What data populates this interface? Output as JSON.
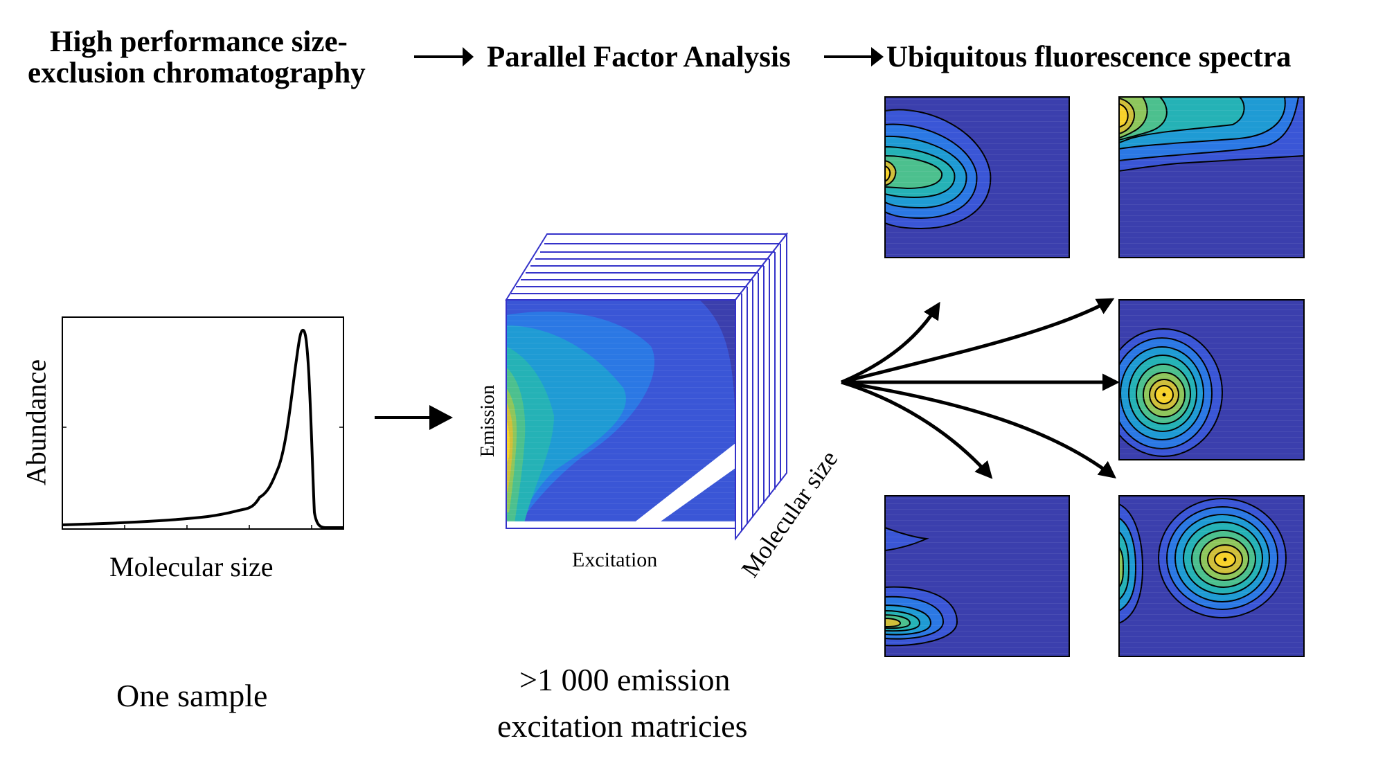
{
  "header": {
    "step1_line1": "High performance size-",
    "step1_line2": "exclusion chromatography",
    "step2": "Parallel Factor Analysis",
    "step3": "Ubiquitous fluorescence spectra"
  },
  "chromatogram": {
    "ylabel": "Abundance",
    "xlabel": "Molecular size",
    "caption": "One sample"
  },
  "cube": {
    "ylabel": "Emission",
    "xlabel": "Excitation",
    "depth_label": "Molecular size",
    "caption_line1": ">1 000 emission",
    "caption_line2": "excitation matricies"
  },
  "colors": {
    "background_fill": "#3b3fad",
    "contour_levels": [
      "#3b3fad",
      "#3a56d6",
      "#2b78e4",
      "#1f9bd4",
      "#25b2b6",
      "#4cc08e",
      "#8ec65c",
      "#d0bf3a",
      "#f7d22a"
    ],
    "frame_line": "#3432c9"
  },
  "components": [
    {
      "name": "component-1"
    },
    {
      "name": "component-2"
    },
    {
      "name": "component-3"
    },
    {
      "name": "component-4"
    },
    {
      "name": "component-5"
    }
  ]
}
